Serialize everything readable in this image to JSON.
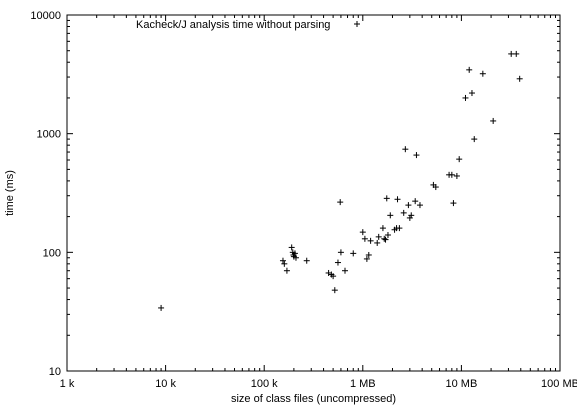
{
  "chart_data": {
    "type": "scatter",
    "xscale": "log",
    "yscale": "log",
    "xlabel": "size of class files (uncompressed)",
    "ylabel": "time (ms)",
    "xlim": [
      1000,
      100000000
    ],
    "ylim": [
      10,
      10000
    ],
    "grid": false,
    "legend": "top-left",
    "marker": "plus",
    "color": "#000000",
    "xticks": [
      {
        "value": 1000,
        "label": "1 k"
      },
      {
        "value": 10000,
        "label": "10 k"
      },
      {
        "value": 100000,
        "label": "100 k"
      },
      {
        "value": 1000000,
        "label": "1 MB"
      },
      {
        "value": 10000000,
        "label": "10 MB"
      },
      {
        "value": 100000000,
        "label": "100 MB"
      }
    ],
    "yticks": [
      {
        "value": 10,
        "label": "10"
      },
      {
        "value": 100,
        "label": "100"
      },
      {
        "value": 1000,
        "label": "1000"
      },
      {
        "value": 10000,
        "label": "10000"
      }
    ],
    "series": [
      {
        "name": "Kacheck/J analysis time without parsing",
        "points": [
          [
            9000,
            34
          ],
          [
            155000,
            85
          ],
          [
            160000,
            80
          ],
          [
            170000,
            70
          ],
          [
            190000,
            110
          ],
          [
            195000,
            100
          ],
          [
            198000,
            95
          ],
          [
            200000,
            92
          ],
          [
            205000,
            98
          ],
          [
            210000,
            90
          ],
          [
            270000,
            85
          ],
          [
            450000,
            67
          ],
          [
            480000,
            65
          ],
          [
            500000,
            63
          ],
          [
            520000,
            48
          ],
          [
            560000,
            82
          ],
          [
            590000,
            265
          ],
          [
            600000,
            100
          ],
          [
            660000,
            70
          ],
          [
            800000,
            98
          ],
          [
            1000000,
            148
          ],
          [
            1050000,
            130
          ],
          [
            1100000,
            88
          ],
          [
            1150000,
            95
          ],
          [
            1200000,
            125
          ],
          [
            1400000,
            120
          ],
          [
            1450000,
            135
          ],
          [
            1600000,
            160
          ],
          [
            1650000,
            130
          ],
          [
            1700000,
            128
          ],
          [
            1750000,
            285
          ],
          [
            1800000,
            140
          ],
          [
            1900000,
            205
          ],
          [
            2100000,
            155
          ],
          [
            2200000,
            160
          ],
          [
            2250000,
            280
          ],
          [
            2350000,
            160
          ],
          [
            2600000,
            215
          ],
          [
            2700000,
            740
          ],
          [
            2900000,
            250
          ],
          [
            3000000,
            195
          ],
          [
            3100000,
            205
          ],
          [
            3400000,
            270
          ],
          [
            3500000,
            660
          ],
          [
            3800000,
            250
          ],
          [
            5200000,
            370
          ],
          [
            5500000,
            355
          ],
          [
            7500000,
            450
          ],
          [
            8000000,
            450
          ],
          [
            8300000,
            260
          ],
          [
            9000000,
            440
          ],
          [
            9500000,
            610
          ],
          [
            11000000,
            2000
          ],
          [
            12000000,
            3450
          ],
          [
            12800000,
            2200
          ],
          [
            13500000,
            900
          ],
          [
            16500000,
            3200
          ],
          [
            21000000,
            1280
          ],
          [
            32000000,
            4700
          ],
          [
            36000000,
            4700
          ],
          [
            39000000,
            2900
          ]
        ]
      }
    ]
  }
}
